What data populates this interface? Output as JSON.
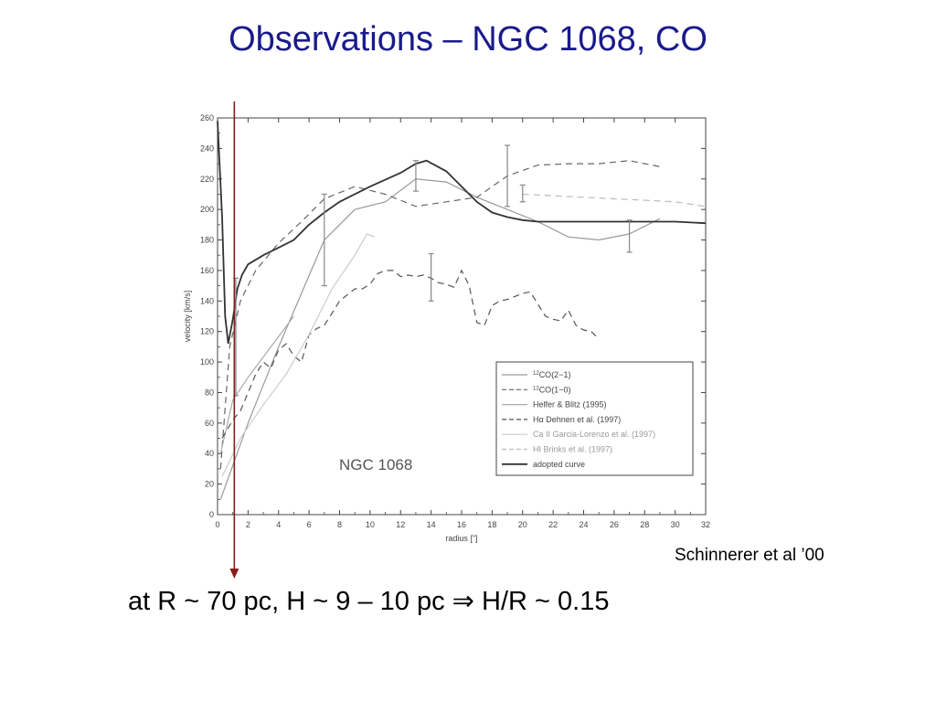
{
  "slide": {
    "title": "Observations – NGC 1068, CO",
    "credit": "Schinnerer et al ’00",
    "statement_prefix": "at R ~ 70 pc, H ~ 9 – 10 pc ",
    "statement_arrow": "⇒",
    "statement_suffix": " H/R ~ 0.15",
    "marker_color": "#8b1a1a"
  },
  "chart_data": {
    "type": "line",
    "title": "",
    "annotation": "NGC  1068",
    "xlabel": "radius [\"]",
    "ylabel": "velocity [km/s]",
    "xlim": [
      0,
      32
    ],
    "ylim": [
      0,
      260
    ],
    "xticks": [
      0,
      2,
      4,
      6,
      8,
      10,
      12,
      14,
      16,
      18,
      20,
      22,
      24,
      26,
      28,
      30,
      32
    ],
    "yticks": [
      0,
      20,
      40,
      60,
      80,
      100,
      120,
      140,
      160,
      180,
      200,
      220,
      240,
      260
    ],
    "grid": false,
    "legend_position": "bottom-right",
    "marker_x": 1.1,
    "series": [
      {
        "name": "12CO(2-1)",
        "name_sup": "12",
        "name_rest": "CO(2−1)",
        "style": "solid",
        "color": "#9a9a9a",
        "x": [
          0.2,
          2,
          4,
          7,
          9,
          11,
          13,
          15,
          17,
          19,
          21,
          23,
          25,
          27,
          29
        ],
        "y": [
          10,
          60,
          110,
          180,
          200,
          205,
          220,
          218,
          208,
          200,
          192,
          182,
          180,
          184,
          194
        ]
      },
      {
        "name": "12CO(1-0)",
        "name_sup": "12",
        "name_rest": "CO(1−0)",
        "style": "dashed",
        "color": "#666666",
        "x": [
          0.2,
          0.8,
          1.5,
          2.5,
          4,
          5.5,
          7,
          9,
          11,
          13,
          15,
          17,
          19,
          21,
          23,
          25,
          27,
          29
        ],
        "y": [
          30,
          110,
          140,
          160,
          178,
          192,
          207,
          215,
          210,
          202,
          205,
          208,
          222,
          229,
          230,
          230,
          232,
          228
        ]
      },
      {
        "name": "Helfer & Blitz (1995)",
        "style": "solid",
        "color": "#aaaaaa",
        "x": [
          0.2,
          1,
          2,
          3.5,
          5
        ],
        "y": [
          40,
          75,
          90,
          110,
          130
        ]
      },
      {
        "name": "Hα Dehnen et al. (1997)",
        "style": "dashed",
        "color": "#555555",
        "x": [
          0.3,
          1,
          1.5,
          2,
          2.5,
          3,
          3.5,
          4,
          4.5,
          5,
          5.5,
          6,
          6.5,
          7,
          7.5,
          8,
          8.5,
          9,
          9.5,
          10,
          10.5,
          11,
          11.5,
          12,
          12.5,
          13,
          13.5,
          14,
          14.5,
          15,
          15.5,
          16,
          16.5,
          17,
          17.5,
          18,
          18.5,
          19,
          19.5,
          20,
          20.5,
          21,
          21.5,
          22,
          22.5,
          23,
          23.5,
          24,
          24.5,
          25
        ],
        "y": [
          50,
          62,
          68,
          80,
          92,
          100,
          96,
          108,
          112,
          104,
          100,
          118,
          122,
          124,
          132,
          140,
          144,
          148,
          148,
          151,
          158,
          160,
          160,
          156,
          157,
          156,
          157,
          155,
          152,
          151,
          149,
          160,
          150,
          126,
          124,
          137,
          140,
          141,
          143,
          145,
          146,
          138,
          130,
          128,
          127,
          134,
          124,
          121,
          120,
          115
        ]
      },
      {
        "name": "Ca II Garcia-Lorenzo et al. (1997)",
        "style": "solid",
        "color": "#cccccc",
        "x": [
          0.3,
          1.5,
          3,
          4.5,
          6,
          7.5,
          9,
          9.8,
          10.3
        ],
        "y": [
          25,
          50,
          72,
          92,
          118,
          148,
          170,
          184,
          182
        ]
      },
      {
        "name": "HI Brinks et al. (1997)",
        "style": "dashed",
        "color": "#bbbbbb",
        "x": [
          20,
          22,
          24,
          26,
          28,
          30,
          32
        ],
        "y": [
          210,
          209,
          208,
          207,
          206,
          205,
          202
        ]
      },
      {
        "name": "adopted curve",
        "style": "solid",
        "color": "#333333",
        "x": [
          0,
          0.3,
          0.5,
          0.7,
          1.0,
          1.3,
          1.6,
          2,
          3,
          4,
          5,
          6,
          7,
          8,
          10,
          12,
          13,
          13.7,
          15,
          16,
          17,
          18,
          19,
          20,
          21,
          25,
          28,
          30,
          32
        ],
        "y": [
          258,
          195,
          130,
          112,
          128,
          148,
          157,
          164,
          170,
          175,
          180,
          190,
          198,
          205,
          215,
          224,
          230,
          232,
          225,
          215,
          205,
          198,
          195,
          193,
          192,
          192,
          192,
          192,
          191
        ]
      }
    ],
    "error_bars": [
      {
        "x": 1.2,
        "low": 78,
        "high": 155
      },
      {
        "x": 7.0,
        "low": 150,
        "high": 210
      },
      {
        "x": 13.0,
        "low": 212,
        "high": 232
      },
      {
        "x": 14.0,
        "low": 140,
        "high": 171
      },
      {
        "x": 19.0,
        "low": 202,
        "high": 242
      },
      {
        "x": 20.0,
        "low": 205,
        "high": 216
      },
      {
        "x": 27.0,
        "low": 172,
        "high": 193
      }
    ],
    "error_bar_color": "#888888"
  }
}
